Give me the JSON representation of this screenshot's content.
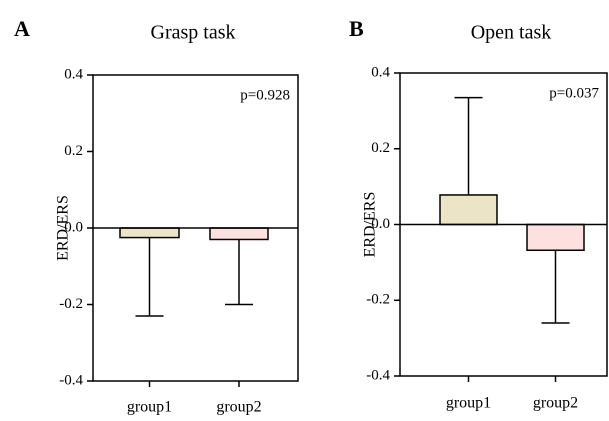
{
  "chart_data": [
    {
      "type": "bar",
      "panel": "A",
      "title": "Grasp task",
      "ylabel": "ERD/ERS",
      "annotation": "p=0.928",
      "categories": [
        "group1",
        "group2"
      ],
      "values": [
        -0.025,
        -0.03
      ],
      "errors": [
        0.205,
        0.17
      ],
      "colors": [
        "#ebe4c5",
        "#fde1e1"
      ],
      "ylim": [
        -0.4,
        0.4
      ],
      "yticks": [
        -0.4,
        -0.2,
        {
          "value": 0,
          "label": "0.0"
        },
        0.2,
        0.4
      ]
    },
    {
      "type": "bar",
      "panel": "B",
      "title": "Open task",
      "ylabel": "ERD/ERS",
      "annotation": "p=0.037",
      "categories": [
        "group1",
        "group2"
      ],
      "values": [
        0.078,
        -0.068
      ],
      "errors": [
        0.257,
        0.192
      ],
      "colors": [
        "#ebe4c5",
        "#fde1e1"
      ],
      "ylim": [
        -0.4,
        0.4
      ],
      "yticks": [
        -0.4,
        -0.2,
        {
          "value": 0,
          "label": "0.0"
        },
        0.2,
        0.4
      ]
    }
  ]
}
